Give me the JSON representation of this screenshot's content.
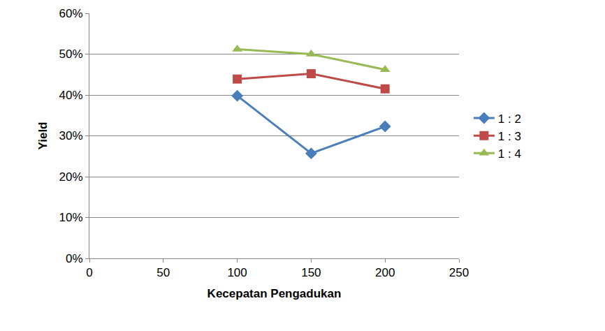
{
  "chart_data": {
    "type": "line",
    "x_label": "Kecepatan Pengadukan",
    "y_label": "Yield",
    "x": [
      100,
      150,
      200
    ],
    "series": [
      {
        "name": "1 : 2",
        "color": "#4a7ebb",
        "marker": "diamond",
        "line_style": "solid",
        "values": [
          39.8,
          25.7,
          32.3
        ]
      },
      {
        "name": "1 : 3",
        "color": "#be4b48",
        "marker": "square",
        "line_style": "solid",
        "values": [
          43.9,
          45.2,
          41.5
        ]
      },
      {
        "name": "1 : 4",
        "color": "#98b954",
        "marker": "triangle",
        "line_style": "solid",
        "values": [
          51.2,
          50.0,
          46.2
        ]
      }
    ],
    "xlim": [
      0,
      250
    ],
    "xticks": [
      0,
      50,
      100,
      150,
      200,
      250
    ],
    "ylim": [
      0,
      60
    ],
    "yticks": [
      {
        "value": 0,
        "label": "0%"
      },
      {
        "value": 10,
        "label": "10%"
      },
      {
        "value": 20,
        "label": "20%"
      },
      {
        "value": 30,
        "label": "30%"
      },
      {
        "value": 40,
        "label": "40%"
      },
      {
        "value": 50,
        "label": "50%"
      },
      {
        "value": 60,
        "label": "60%"
      }
    ],
    "grid": true,
    "legend": "right"
  }
}
